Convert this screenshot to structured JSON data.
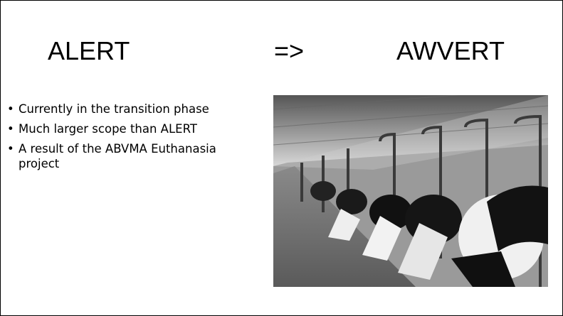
{
  "slide": {
    "title_left": "ALERT",
    "arrow": "=>",
    "title_right": "AWVERT",
    "bullets": [
      "Currently in the transition phase",
      "Much larger scope than ALERT",
      "A result of the ABVMA Euthanasia project"
    ]
  }
}
